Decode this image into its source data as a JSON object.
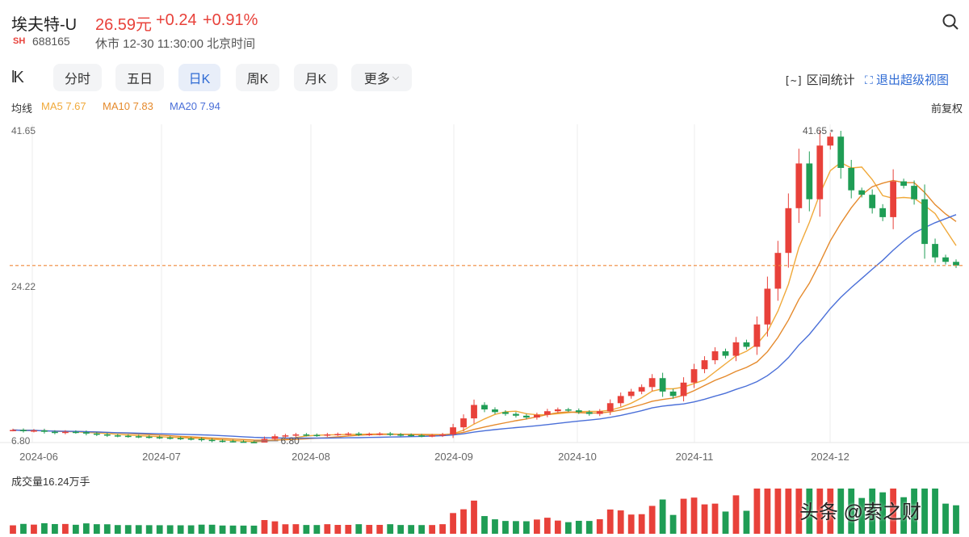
{
  "header": {
    "name": "埃夫特-U",
    "price": "26.59元",
    "change": "+0.24",
    "change_pct": "+0.91%",
    "exchange": "SH",
    "code": "688165",
    "status": "休市 12-30 11:30:00 北京时间"
  },
  "toolbar": {
    "logo": "lK",
    "tabs": [
      {
        "label": "分时",
        "active": false
      },
      {
        "label": "五日",
        "active": false
      },
      {
        "label": "日K",
        "active": true
      },
      {
        "label": "周K",
        "active": false
      },
      {
        "label": "月K",
        "active": false
      },
      {
        "label": "更多",
        "active": false
      }
    ],
    "range_stats": "区间统计",
    "exit_view": "退出超级视图"
  },
  "ma": {
    "label": "均线",
    "ma5": "MA5 7.67",
    "ma10": "MA10 7.83",
    "ma20": "MA20 7.94",
    "adjust": "前复权",
    "colors": {
      "ma5": "#f0a93a",
      "ma10": "#e58a2c",
      "ma20": "#4a6fd8"
    }
  },
  "chart_data": {
    "type": "candlestick",
    "y_labels": [
      "41.65",
      "24.22",
      "6.80"
    ],
    "x_labels": [
      "2024-06",
      "2024-07",
      "2024-08",
      "2024-09",
      "2024-10",
      "2024-11",
      "2024-12"
    ],
    "high_marker": "41.65",
    "low_marker": "6.80",
    "current_price_line": 26.59,
    "up_color": "#e8413a",
    "down_color": "#1f9d55",
    "close_series": [
      8.2,
      8.1,
      8.15,
      8.0,
      7.9,
      8.0,
      7.95,
      7.8,
      7.7,
      7.6,
      7.55,
      7.5,
      7.45,
      7.4,
      7.35,
      7.3,
      7.25,
      7.2,
      7.1,
      7.0,
      6.95,
      6.9,
      6.85,
      6.8,
      7.2,
      7.5,
      7.6,
      7.7,
      7.65,
      7.6,
      7.7,
      7.75,
      7.8,
      7.7,
      7.75,
      7.8,
      7.7,
      7.65,
      7.6,
      7.55,
      7.6,
      7.7,
      8.5,
      9.5,
      11.0,
      10.5,
      10.2,
      10.0,
      9.8,
      9.6,
      9.9,
      10.3,
      10.5,
      10.4,
      10.2,
      10.0,
      10.3,
      11.2,
      12.0,
      12.5,
      13.0,
      14.0,
      12.5,
      12.0,
      13.5,
      15.0,
      16.0,
      17.0,
      16.5,
      18.0,
      17.5,
      20.0,
      24.0,
      28.0,
      33.0,
      38.0,
      34.0,
      40.0,
      41.0,
      37.5,
      35.0,
      34.5,
      33.0,
      32.0,
      36.0,
      35.5,
      34.0,
      29.0,
      27.5,
      27.0,
      26.59
    ],
    "volume_label": "成交量16.24万手"
  },
  "watermark": "头条 @索之财"
}
